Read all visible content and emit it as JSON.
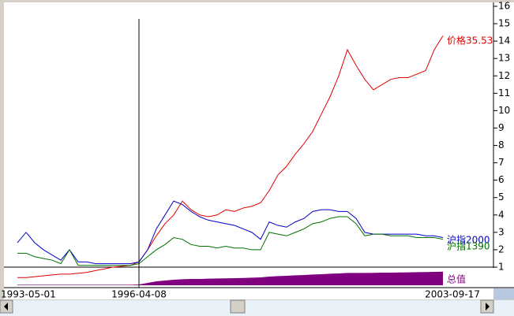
{
  "chart_data": {
    "type": "line",
    "categories": [
      "1993-05-01",
      null,
      null,
      null,
      null,
      null,
      null,
      null,
      null,
      null,
      null,
      null,
      null,
      null,
      "1996-04-08",
      null,
      null,
      null,
      null,
      null,
      null,
      null,
      null,
      null,
      null,
      null,
      null,
      null,
      null,
      null,
      null,
      null,
      null,
      null,
      null,
      null,
      null,
      null,
      null,
      null,
      null,
      null,
      null,
      null,
      null,
      null,
      null,
      null,
      null,
      "2003-09-17"
    ],
    "series": [
      {
        "name": "价格35.53",
        "color": "#e00000",
        "values": [
          0.4,
          0.4,
          0.45,
          0.5,
          0.55,
          0.6,
          0.6,
          0.65,
          0.7,
          0.8,
          0.9,
          1.0,
          1.05,
          1.1,
          1.3,
          2.0,
          2.8,
          3.5,
          4.0,
          4.8,
          4.3,
          4.0,
          3.9,
          4.0,
          4.3,
          4.2,
          4.4,
          4.5,
          4.7,
          5.4,
          6.3,
          6.8,
          7.5,
          8.1,
          8.8,
          9.8,
          10.8,
          12.0,
          13.5,
          12.6,
          11.8,
          11.2,
          11.5,
          11.8,
          11.9,
          11.9,
          12.1,
          12.3,
          13.5,
          14.3
        ]
      },
      {
        "name": "沪指2000",
        "color": "#0000c8",
        "values": [
          2.4,
          3.0,
          2.4,
          2.0,
          1.7,
          1.4,
          2.0,
          1.3,
          1.3,
          1.2,
          1.2,
          1.2,
          1.2,
          1.2,
          1.3,
          2.0,
          3.2,
          4.0,
          4.8,
          4.6,
          4.2,
          3.9,
          3.7,
          3.6,
          3.5,
          3.4,
          3.2,
          3.0,
          2.6,
          3.6,
          3.4,
          3.3,
          3.6,
          3.8,
          4.2,
          4.3,
          4.3,
          4.2,
          4.2,
          3.8,
          3.0,
          2.9,
          2.9,
          2.9,
          2.9,
          2.9,
          2.9,
          2.8,
          2.8,
          2.7
        ]
      },
      {
        "name": "沪指1390",
        "color": "#007000",
        "values": [
          1.8,
          1.8,
          1.6,
          1.5,
          1.4,
          1.2,
          2.0,
          1.1,
          1.1,
          1.1,
          1.1,
          1.1,
          1.1,
          1.1,
          1.2,
          1.6,
          2.0,
          2.3,
          2.7,
          2.6,
          2.3,
          2.2,
          2.2,
          2.1,
          2.2,
          2.1,
          2.1,
          2.0,
          2.0,
          3.0,
          2.9,
          2.8,
          3.0,
          3.2,
          3.5,
          3.6,
          3.8,
          3.9,
          3.9,
          3.5,
          2.8,
          2.9,
          2.9,
          2.8,
          2.8,
          2.8,
          2.7,
          2.7,
          2.7,
          2.6
        ]
      },
      {
        "name": "总值",
        "color": "#800080",
        "values": [
          0.3,
          0.3,
          0.3,
          0.3,
          0.3,
          0.3,
          0.3,
          0.3,
          0.3,
          0.3,
          0.3,
          0.3,
          0.3,
          0.3,
          0.5,
          1.5,
          2.5,
          3.0,
          3.5,
          3.8,
          4.0,
          4.0,
          4.2,
          4.3,
          4.4,
          4.5,
          4.6,
          4.8,
          5.0,
          5.5,
          5.8,
          6.0,
          6.3,
          6.5,
          6.8,
          7.0,
          7.3,
          7.5,
          7.8,
          7.8,
          7.8,
          7.9,
          8.0,
          8.0,
          8.1,
          8.2,
          8.3,
          8.4,
          8.5,
          8.6
        ],
        "axis": "volume"
      }
    ],
    "ylim": [
      1,
      16
    ],
    "yticks": [
      1,
      2,
      3,
      4,
      5,
      6,
      7,
      8,
      9,
      10,
      11,
      12,
      13,
      14,
      15,
      16
    ],
    "volume_lim": [
      0,
      10
    ]
  }
}
